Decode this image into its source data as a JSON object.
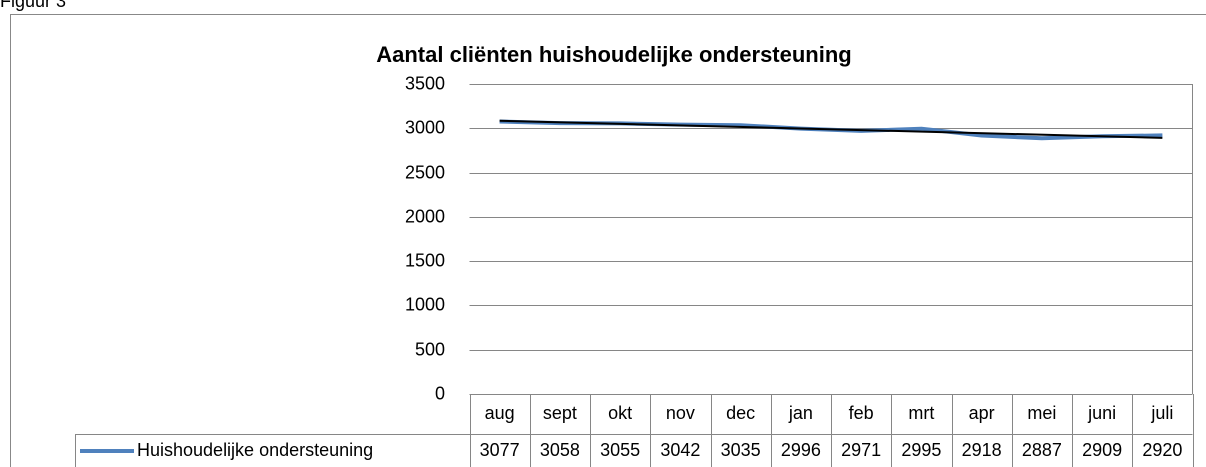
{
  "figure_label": "Figuur 3",
  "chart_data": {
    "type": "line",
    "title": "Aantal cliënten huishoudelijke ondersteuning",
    "categories": [
      "aug",
      "sept",
      "okt",
      "nov",
      "dec",
      "jan",
      "feb",
      "mrt",
      "apr",
      "mei",
      "juni",
      "juli"
    ],
    "series": [
      {
        "name": "Huishoudelijke ondersteuning",
        "color": "#4f81bd",
        "values": [
          3077,
          3058,
          3055,
          3042,
          3035,
          2996,
          2971,
          2995,
          2918,
          2887,
          2909,
          2920
        ]
      }
    ],
    "ylim": [
      0,
      3500
    ],
    "yticks": [
      0,
      500,
      1000,
      1500,
      2000,
      2500,
      3000,
      3500
    ],
    "grid": true,
    "trendline": "linear",
    "trendline_color": "#000000",
    "data_table": true
  }
}
